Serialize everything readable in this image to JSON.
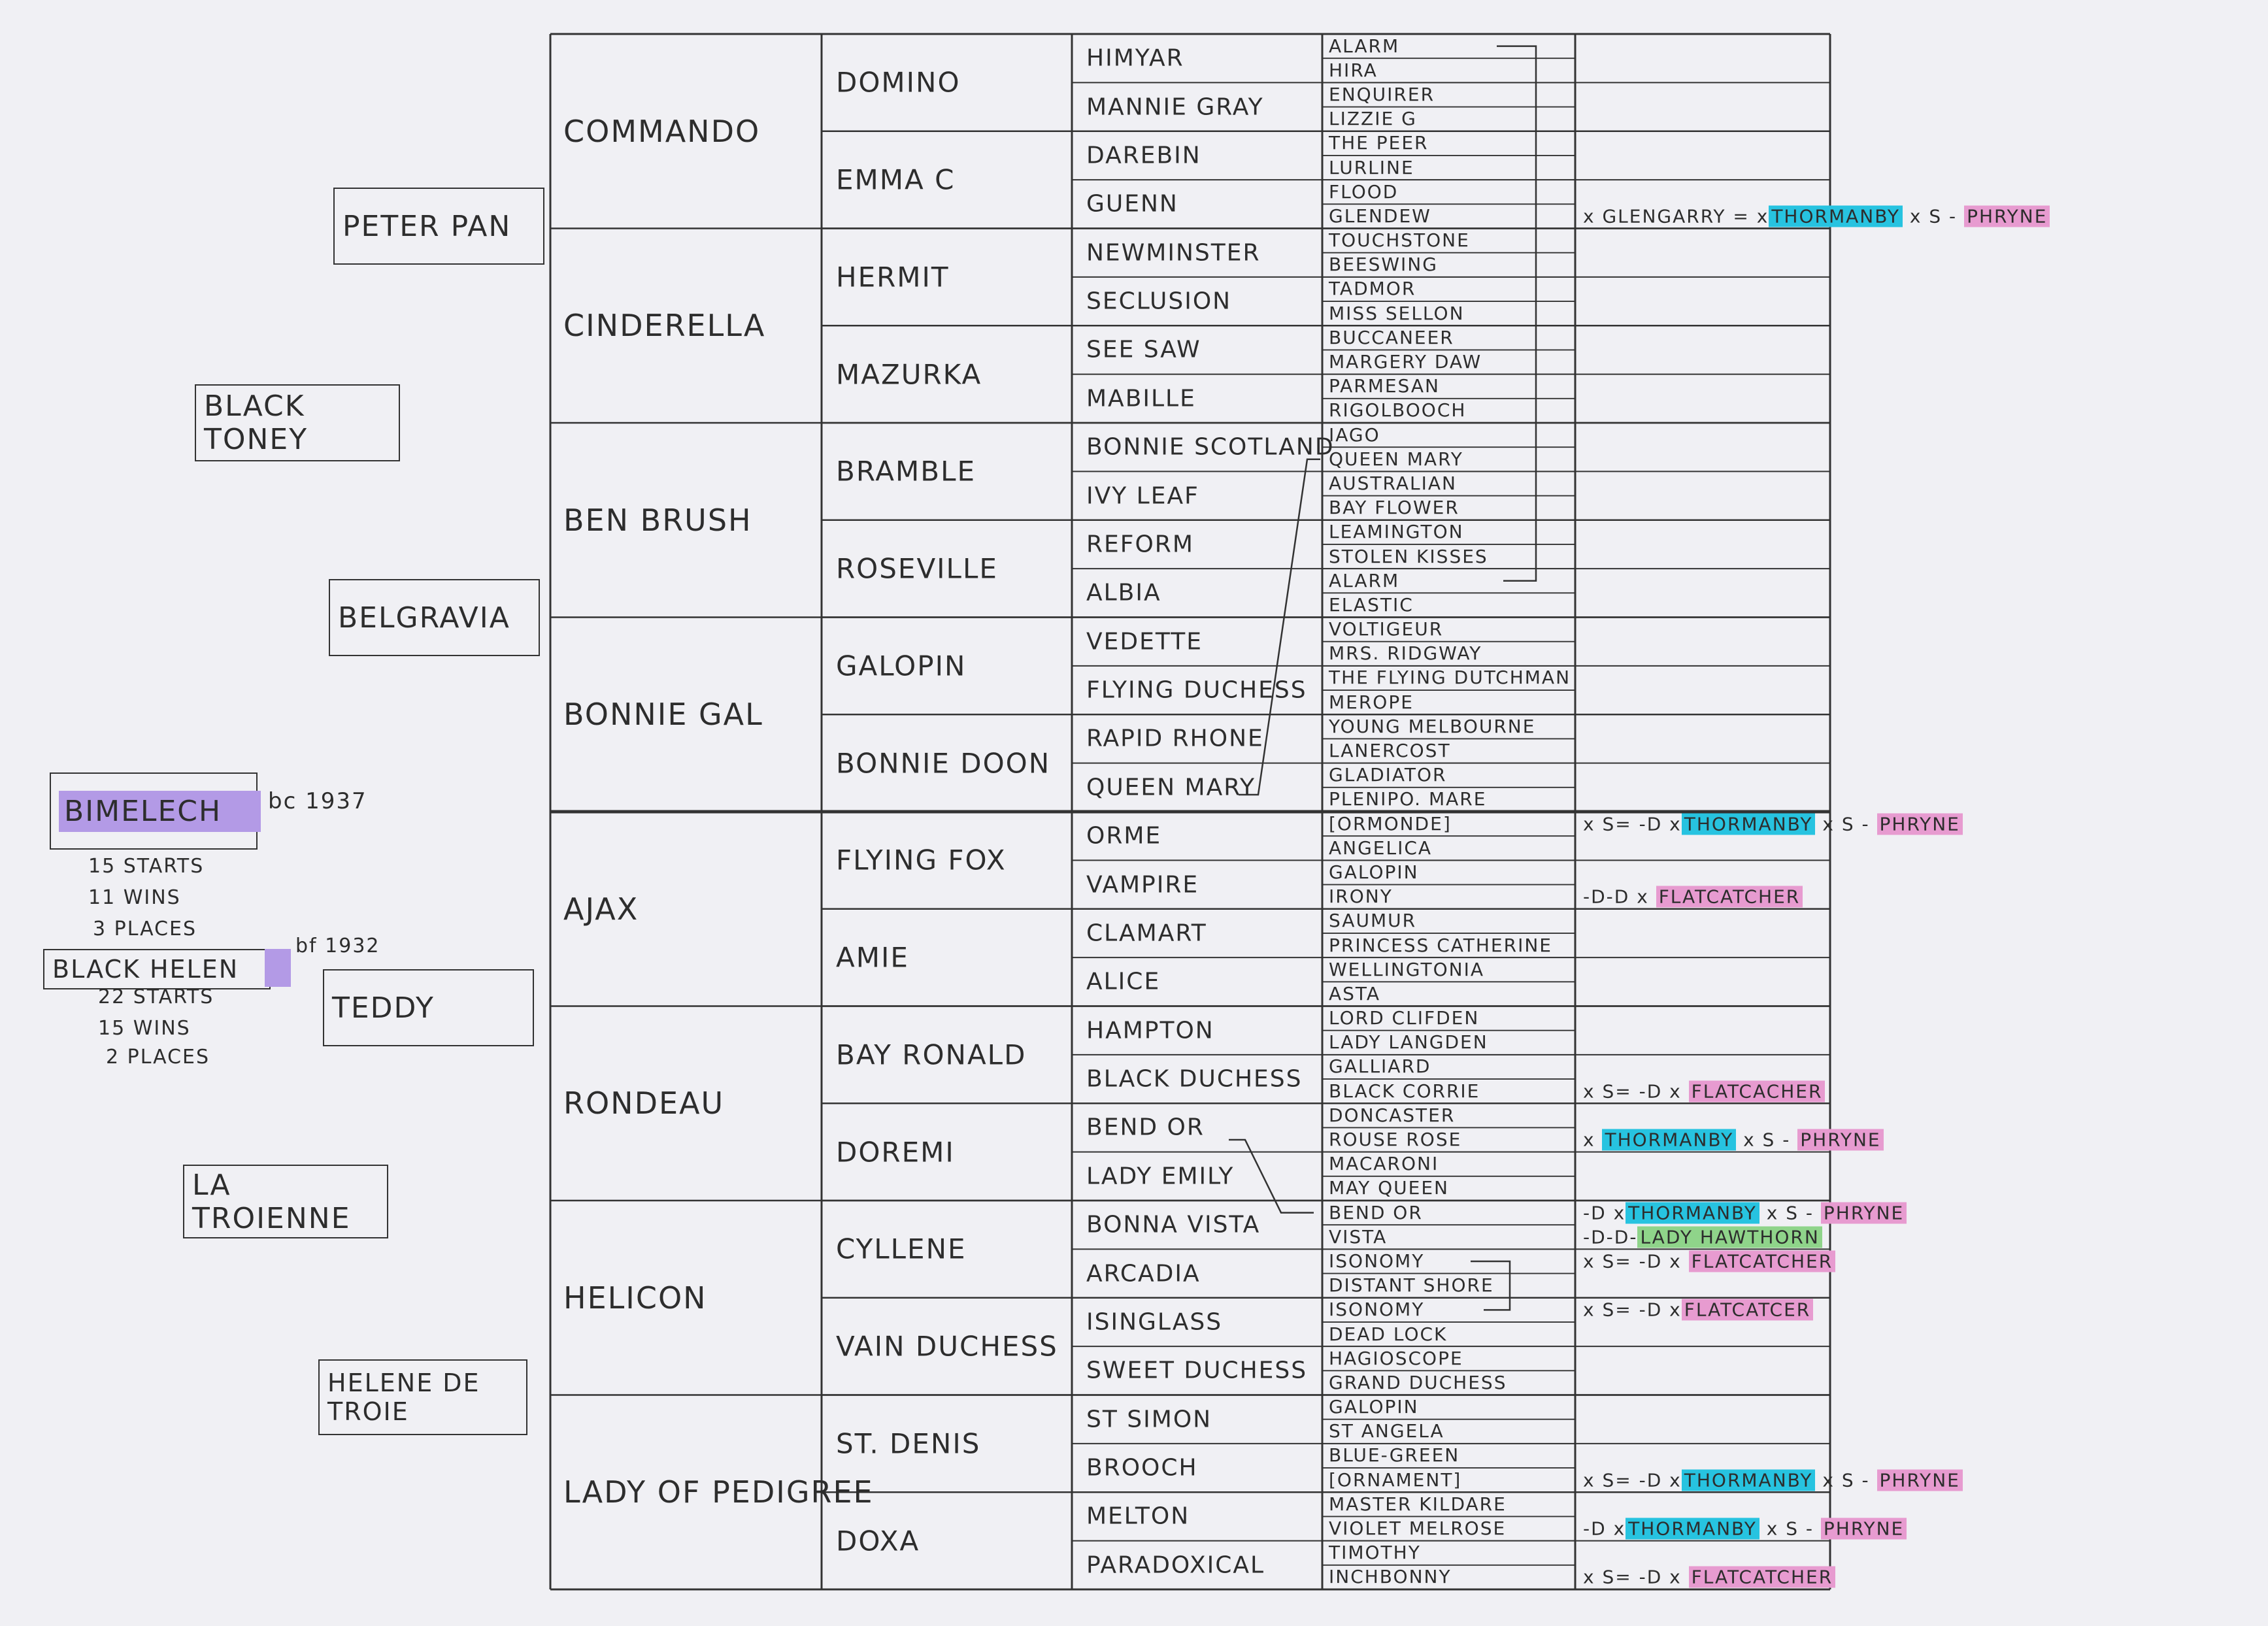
{
  "subject": {
    "name": "BIMELECH",
    "birth_note": "bc 1937",
    "record": [
      "15 STARTS",
      "11 WINS",
      "3 PLACES"
    ]
  },
  "sibling": {
    "name": "BLACK HELEN",
    "birth_note": "bf 1932",
    "record": [
      "22 STARTS",
      "15 WINS",
      "2 PLACES"
    ]
  },
  "generation_left": [
    "PETER PAN",
    "BLACK TONEY",
    "BELGRAVIA",
    "TEDDY",
    "LA TROIENNE",
    "HELENE DE TROIE"
  ],
  "gen1": [
    "COMMANDO",
    "CINDERELLA",
    "BEN BRUSH",
    "BONNIE GAL",
    "AJAX",
    "RONDEAU",
    "HELICON",
    "LADY OF PEDIGREE"
  ],
  "gen2": [
    "DOMINO",
    "EMMA C",
    "HERMIT",
    "MAZURKA",
    "BRAMBLE",
    "ROSEVILLE",
    "GALOPIN",
    "BONNIE DOON",
    "FLYING FOX",
    "AMIE",
    "BAY RONALD",
    "DOREMI",
    "CYLLENE",
    "VAIN DUCHESS",
    "ST. DENIS",
    "DOXA"
  ],
  "gen3": [
    "HIMYAR",
    "MANNIE GRAY",
    "DAREBIN",
    "GUENN",
    "NEWMINSTER",
    "SECLUSION",
    "SEE SAW",
    "MABILLE",
    "BONNIE SCOTLAND",
    "IVY LEAF",
    "REFORM",
    "ALBIA",
    "VEDETTE",
    "FLYING DUCHESS",
    "RAPID RHONE",
    "QUEEN MARY",
    "ORME",
    "VAMPIRE",
    "CLAMART",
    "ALICE",
    "HAMPTON",
    "BLACK DUCHESS",
    "BEND OR",
    "LADY EMILY",
    "BONNA VISTA",
    "ARCADIA",
    "ISINGLASS",
    "SWEET DUCHESS",
    "ST SIMON",
    "BROOCH",
    "MELTON",
    "PARADOXICAL"
  ],
  "gen4": [
    "ALARM",
    "HIRA",
    "ENQUIRER",
    "LIZZIE G",
    "THE PEER",
    "LURLINE",
    "FLOOD",
    "GLENDEW",
    "TOUCHSTONE",
    "BEESWING",
    "TADMOR",
    "MISS SELLON",
    "BUCCANEER",
    "MARGERY DAW",
    "PARMESAN",
    "RIGOLBOOCH",
    "IAGO",
    "QUEEN MARY",
    "AUSTRALIAN",
    "BAY FLOWER",
    "LEAMINGTON",
    "STOLEN KISSES",
    "ALARM",
    "ELASTIC",
    "VOLTIGEUR",
    "MRS. RIDGWAY",
    "THE FLYING DUTCHMAN",
    "MEROPE",
    "YOUNG MELBOURNE",
    "LANERCOST",
    "GLADIATOR",
    "PLENIPO. MARE",
    "[ORMONDE]",
    "ANGELICA",
    "GALOPIN",
    "IRONY",
    "SAUMUR",
    "PRINCESS CATHERINE",
    "WELLINGTONIA",
    "ASTA",
    "LORD CLIFDEN",
    "LADY LANGDEN",
    "GALLIARD",
    "BLACK CORRIE",
    "DONCASTER",
    "ROUSE ROSE",
    "MACARONI",
    "MAY QUEEN",
    "BEND OR",
    "VISTA",
    "ISONOMY",
    "DISTANT SHORE",
    "ISONOMY",
    "DEAD LOCK",
    "HAGIOSCOPE",
    "GRAND DUCHESS",
    "GALOPIN",
    "ST ANGELA",
    "BLUE-GREEN",
    "[ORNAMENT]",
    "MASTER KILDARE",
    "VIOLET MELROSE",
    "TIMOTHY",
    "INCHBONNY"
  ],
  "annotations": [
    {
      "row": 7,
      "parts": [
        [
          "x GLENGARRY = x",
          ""
        ],
        [
          "THORMANBY",
          "cyan"
        ],
        [
          " x S - ",
          ""
        ],
        [
          "PHRYNE",
          "pink"
        ]
      ]
    },
    {
      "row": 32,
      "parts": [
        [
          "x S= -D x",
          ""
        ],
        [
          "THORMANBY",
          "cyan"
        ],
        [
          " x S - ",
          ""
        ],
        [
          "PHRYNE",
          "pink"
        ]
      ]
    },
    {
      "row": 35,
      "parts": [
        [
          "-D-D x ",
          ""
        ],
        [
          "FLATCATCHER",
          "pink"
        ]
      ]
    },
    {
      "row": 43,
      "parts": [
        [
          "x S= -D x ",
          ""
        ],
        [
          "FLATCACHER",
          "pink"
        ]
      ]
    },
    {
      "row": 45,
      "parts": [
        [
          "x ",
          ""
        ],
        [
          "THORMANBY",
          "cyan"
        ],
        [
          " x S - ",
          ""
        ],
        [
          "PHRYNE",
          "pink"
        ]
      ]
    },
    {
      "row": 48,
      "parts": [
        [
          "-D x",
          ""
        ],
        [
          "THORMANBY",
          "cyan"
        ],
        [
          " x S - ",
          ""
        ],
        [
          "PHRYNE",
          "pink"
        ]
      ]
    },
    {
      "row": 49,
      "parts": [
        [
          "-D-D-",
          ""
        ],
        [
          "LADY HAWTHORN",
          "green"
        ]
      ]
    },
    {
      "row": 50,
      "parts": [
        [
          "x S= -D x ",
          ""
        ],
        [
          "FLATCATCHER",
          "pink"
        ]
      ]
    },
    {
      "row": 52,
      "parts": [
        [
          "x S= -D x",
          ""
        ],
        [
          "FLATCATCER",
          "pink"
        ]
      ]
    },
    {
      "row": 59,
      "parts": [
        [
          "x S= -D x",
          ""
        ],
        [
          "THORMANBY",
          "cyan"
        ],
        [
          " x S - ",
          ""
        ],
        [
          "PHRYNE",
          "pink"
        ]
      ]
    },
    {
      "row": 61,
      "parts": [
        [
          "-D x",
          ""
        ],
        [
          "THORMANBY",
          "cyan"
        ],
        [
          " x S - ",
          ""
        ],
        [
          "PHRYNE",
          "pink"
        ]
      ]
    },
    {
      "row": 63,
      "parts": [
        [
          "x S= -D x ",
          ""
        ],
        [
          "FLATCATCHER",
          "pink"
        ]
      ]
    }
  ],
  "colors": {
    "cyan": "#27c3e0",
    "pink": "#e79bd0",
    "green": "#8fd48a",
    "purple": "#b39ae6",
    "ink": "#2d2d2d",
    "paper": "#f0f0f4"
  }
}
